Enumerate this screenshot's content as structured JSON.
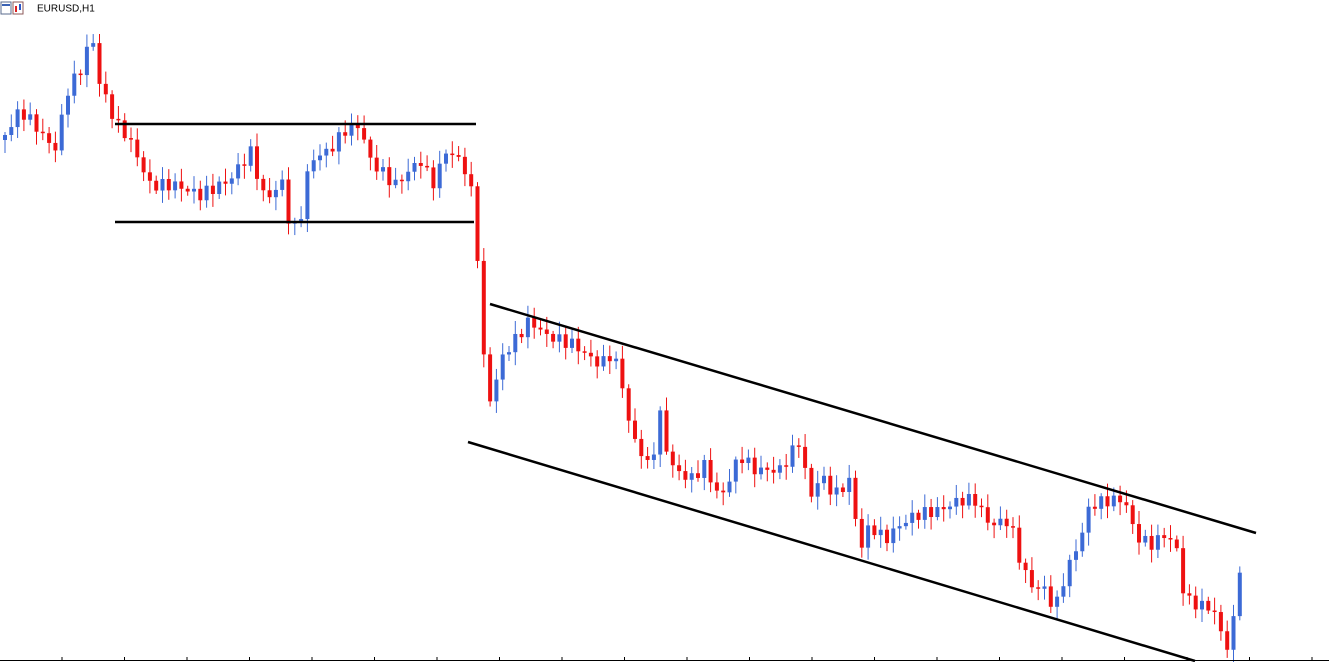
{
  "window": {
    "symbol_title": "EURUSD,H1"
  }
}
